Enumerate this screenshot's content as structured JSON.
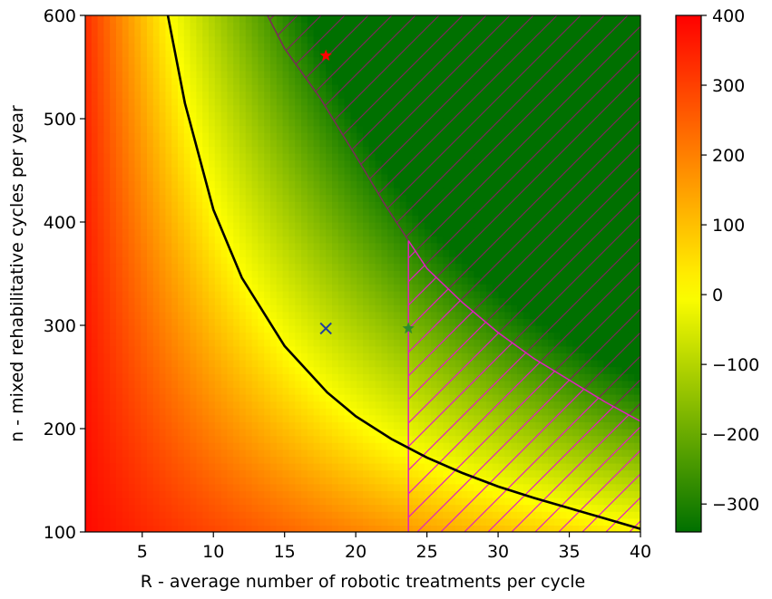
{
  "chart_data": {
    "type": "heatmap",
    "title": "",
    "xlabel": "R - average number of robotic treatments per cycle",
    "ylabel": "n - mixed rehabilitative cycles per year",
    "xlim": [
      1,
      40
    ],
    "ylim": [
      100,
      600
    ],
    "x_ticks": [
      5,
      10,
      15,
      20,
      25,
      30,
      35,
      40
    ],
    "x_tick_labels": [
      "5",
      "10",
      "15",
      "20",
      "25",
      "30",
      "35",
      "40"
    ],
    "y_ticks": [
      100,
      200,
      300,
      400,
      500,
      600
    ],
    "y_tick_labels": [
      "100",
      "200",
      "300",
      "400",
      "500",
      "600"
    ],
    "colorbar": {
      "range": [
        -340,
        400
      ],
      "ticks": [
        400,
        300,
        200,
        100,
        0,
        -100,
        -200,
        -300
      ],
      "tick_labels": [
        "400",
        "300",
        "200",
        "100",
        "0",
        "−100",
        "−200",
        "−300"
      ],
      "colors": {
        "min": "#007000",
        "zero": "#ffff00",
        "max": "#ff0000"
      }
    },
    "zero_contour_curve": [
      {
        "x": 6.8,
        "y": 600
      },
      {
        "x": 8,
        "y": 515
      },
      {
        "x": 10,
        "y": 412
      },
      {
        "x": 12,
        "y": 346
      },
      {
        "x": 15,
        "y": 280
      },
      {
        "x": 18,
        "y": 235
      },
      {
        "x": 20,
        "y": 212
      },
      {
        "x": 22.5,
        "y": 190
      },
      {
        "x": 25,
        "y": 172
      },
      {
        "x": 27.5,
        "y": 157
      },
      {
        "x": 30,
        "y": 144
      },
      {
        "x": 32.5,
        "y": 133
      },
      {
        "x": 35,
        "y": 123
      },
      {
        "x": 37.5,
        "y": 113
      },
      {
        "x": 40,
        "y": 103
      }
    ],
    "hatched_region_boundary": [
      {
        "x": 13.8,
        "y": 600
      },
      {
        "x": 15,
        "y": 568
      },
      {
        "x": 17.5,
        "y": 520
      },
      {
        "x": 20,
        "y": 464
      },
      {
        "x": 22,
        "y": 418
      },
      {
        "x": 23.7,
        "y": 382
      },
      {
        "x": 25,
        "y": 355
      },
      {
        "x": 27.5,
        "y": 322
      },
      {
        "x": 30,
        "y": 293
      },
      {
        "x": 32.5,
        "y": 268
      },
      {
        "x": 35,
        "y": 247
      },
      {
        "x": 37.5,
        "y": 226
      },
      {
        "x": 40,
        "y": 207
      }
    ],
    "vertical_limit_x": 23.7,
    "markers": [
      {
        "name": "red-star",
        "x": 17.9,
        "y": 561,
        "symbol": "star",
        "color": "#ff0000"
      },
      {
        "name": "blue-cross",
        "x": 17.9,
        "y": 297,
        "symbol": "x",
        "color": "#1f3f9f"
      },
      {
        "name": "green-star",
        "x": 23.7,
        "y": 297,
        "symbol": "star",
        "color": "#2e8b2e"
      }
    ],
    "colors": {
      "zero_contour": "#000000",
      "hatch_purple": "#7a2a5a",
      "hatch_magenta": "#e020c0"
    }
  }
}
